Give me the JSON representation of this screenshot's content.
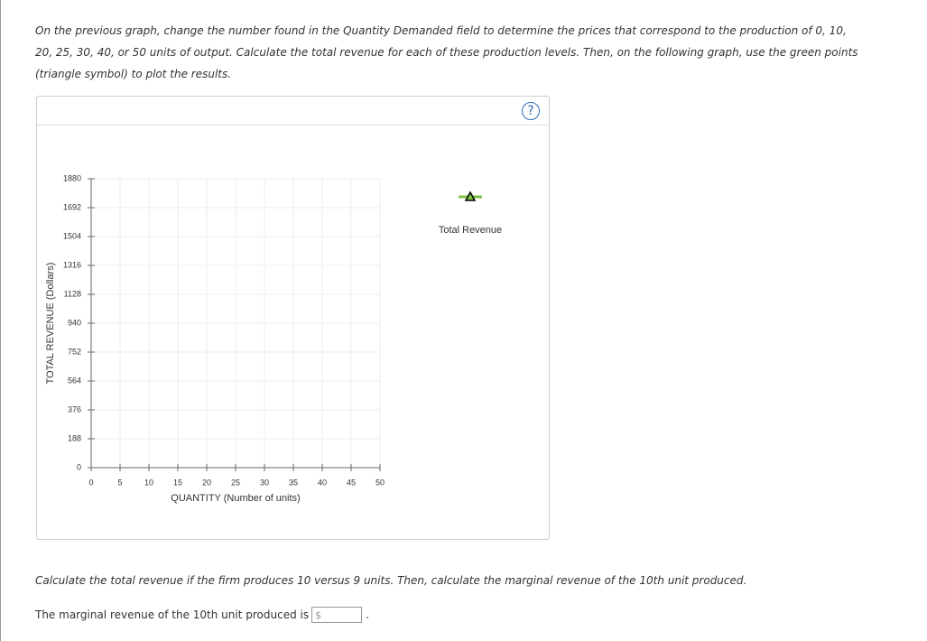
{
  "instructions": "On the previous graph, change the number found in the Quantity Demanded field to determine the prices that correspond to the production of 0, 10, 20, 25, 30, 40, or 50 units of output. Calculate the total revenue for each of these production levels. Then, on the following graph, use the green points (triangle symbol) to plot the results.",
  "help_icon": "?",
  "chart_data": {
    "type": "scatter",
    "xlabel": "QUANTITY (Number of units)",
    "ylabel": "TOTAL REVENUE (Dollars)",
    "xlim": [
      0,
      50
    ],
    "xticks": [
      0,
      5,
      10,
      15,
      20,
      25,
      30,
      35,
      40,
      45,
      50
    ],
    "ylim": [
      0,
      1880
    ],
    "yticks": [
      0,
      188,
      376,
      564,
      752,
      940,
      1128,
      1316,
      1504,
      1692,
      1880
    ],
    "grid": true,
    "series": [
      {
        "name": "Total Revenue",
        "color": "#7cc242",
        "x": [],
        "values": []
      }
    ]
  },
  "question": "Calculate the total revenue if the firm produces 10 versus 9 units. Then, calculate the marginal revenue of the 10th unit produced.",
  "answer": {
    "label": "The marginal revenue of the 10th unit produced is",
    "prefix": "$",
    "suffix": "."
  }
}
